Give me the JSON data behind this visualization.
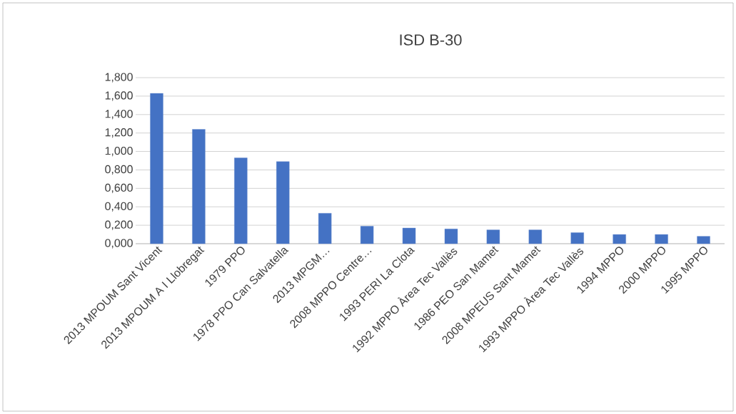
{
  "chart_data": {
    "type": "bar",
    "title": "ISD B-30",
    "categories": [
      "2013 MPOUM Sant Vicent",
      "2013 MPOUM A I Llobregat",
      "1979 PPO",
      "1978 PPO Can Salvatella",
      "2013 MPGM…",
      "2008 MPPO Centre…",
      "1993 PERI La Clota",
      "1992 MPPO Àrea Tec Vallès",
      "1986 PEO San Mamet",
      "2008 MPEUS Sant Mamet",
      "1993 MPPO Àrea Tec Vallès",
      "1994 MPPO",
      "2000 MPPO",
      "1995 MPPO"
    ],
    "values": [
      1.63,
      1.24,
      0.93,
      0.89,
      0.33,
      0.19,
      0.17,
      0.16,
      0.15,
      0.15,
      0.12,
      0.1,
      0.1,
      0.08
    ],
    "color": "#4472c4",
    "ylim": [
      0,
      1.8
    ],
    "yticks": [
      {
        "value": 0,
        "label": "0,000"
      },
      {
        "value": 0.2,
        "label": "0,200"
      },
      {
        "value": 0.4,
        "label": "0,400"
      },
      {
        "value": 0.6,
        "label": "0,600"
      },
      {
        "value": 0.8,
        "label": "0,800"
      },
      {
        "value": 1.0,
        "label": "1,000"
      },
      {
        "value": 1.2,
        "label": "1,200"
      },
      {
        "value": 1.4,
        "label": "1,400"
      },
      {
        "value": 1.6,
        "label": "1,600"
      },
      {
        "value": 1.8,
        "label": "1,800"
      }
    ],
    "grid": "y"
  }
}
